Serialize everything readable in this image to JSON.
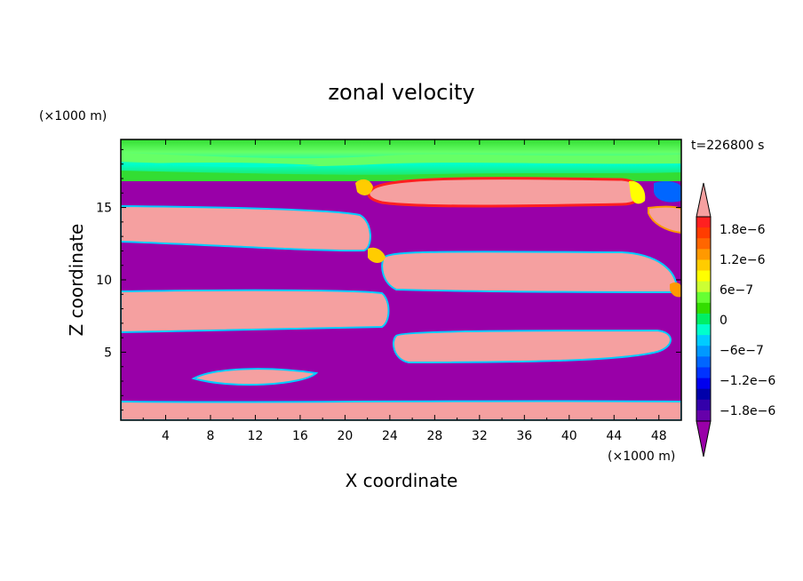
{
  "chart_data": {
    "type": "heatmap",
    "title": "zonal velocity",
    "xlabel": "X coordinate",
    "ylabel": "Z coordinate",
    "x_unit": "(×1000 m)",
    "y_unit": "(×1000 m)",
    "time_label": "t=226800 s",
    "xlim": [
      0,
      50
    ],
    "ylim": [
      0.3,
      19.7
    ],
    "x_ticks": [
      4,
      8,
      12,
      16,
      20,
      24,
      28,
      32,
      36,
      40,
      44,
      48
    ],
    "y_ticks": [
      5,
      10,
      15
    ],
    "colorbar": {
      "labels": [
        "1.8e−6",
        "1.2e−6",
        "6e−7",
        "0",
        "−6e−7",
        "−1.2e−6",
        "−1.8e−6"
      ],
      "levels": [
        1.8e-06,
        1.2e-06,
        6e-07,
        0,
        -6e-07,
        -1.2e-06,
        -1.8e-06
      ],
      "colors": [
        "#f5a0a0",
        "#ff2020",
        "#ff3c00",
        "#ff6600",
        "#ff9900",
        "#ffcc00",
        "#ffff00",
        "#ccff33",
        "#66ff33",
        "#33dd00",
        "#00ee66",
        "#00ffcc",
        "#00ccff",
        "#0099ff",
        "#0066ff",
        "#0033ff",
        "#0000ee",
        "#0000aa",
        "#3300aa",
        "#6600aa",
        "#9900a8"
      ]
    },
    "regions": [
      {
        "value": "positive",
        "color": "#f5a0a0"
      },
      {
        "value": "negative",
        "color": "#9900a8"
      },
      {
        "value": "near-zero",
        "color": "#33dd33"
      }
    ]
  },
  "colors": {
    "positive": "#f5a0a0",
    "negative": "#9900a8",
    "green": "#33dd33",
    "light_green": "#66ff66",
    "cyan": "#00ffcc",
    "red": "#ff2020",
    "orange": "#ff9900",
    "yellow": "#ffff00",
    "blue": "#0066ff"
  }
}
